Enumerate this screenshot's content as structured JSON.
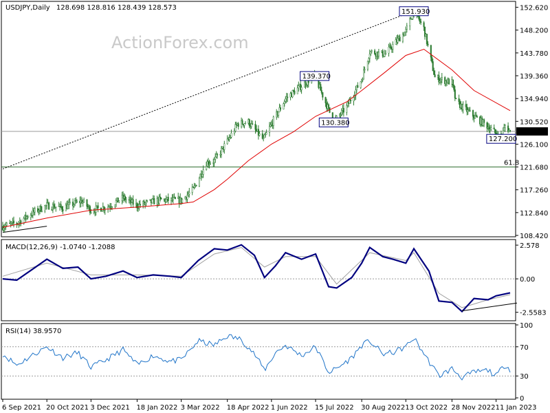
{
  "header": {
    "symbol": "USDJPY,Daily",
    "ohlc": "128.698 128.816 128.439 128.573",
    "watermark": "ActionForex.com"
  },
  "colors": {
    "candle": "#2e7d32",
    "ma": "#e00000",
    "macd": "#00007f",
    "signal": "#a0a0a0",
    "rsi": "#1e73c8",
    "grid": "#9a9a9a"
  },
  "chart_data": [
    {
      "type": "line",
      "panel": "price",
      "chart_kind": "candlestick",
      "ylim": [
        108.42,
        153.5
      ],
      "y_ticks": [
        "152.620",
        "148.200",
        "143.780",
        "139.360",
        "134.940",
        "130.520",
        "126.100",
        "121.680",
        "117.260",
        "112.840",
        "108.420"
      ],
      "y_tick_values": [
        152.62,
        148.2,
        143.78,
        139.36,
        134.94,
        130.52,
        126.1,
        121.68,
        117.26,
        112.84,
        108.42
      ],
      "x_ticks": [
        "6 Sep 2021",
        "20 Oct 2021",
        "3 Dec 2021",
        "18 Jan 2022",
        "3 Mar 2022",
        "18 Apr 2022",
        "1 Jun 2022",
        "15 Jul 2022",
        "30 Aug 2022",
        "13 Oct 2022",
        "28 Nov 2022",
        "11 Jan 2023"
      ],
      "current_price": "128.573",
      "fib_level": {
        "label": "61.8",
        "value": 121.68
      },
      "annotations": [
        {
          "text": "151.930",
          "x": "21 Oct 2022",
          "y": 151.93
        },
        {
          "text": "139.370",
          "x": "14 Jul 2022",
          "y": 139.37
        },
        {
          "text": "130.380",
          "x": "2 Aug 2022",
          "y": 130.38
        },
        {
          "text": "127.200",
          "x": "16 Jan 2023",
          "y": 127.2
        }
      ],
      "price_path": [
        [
          "6 Sep 2021",
          110.2
        ],
        [
          "20 Sep 2021",
          110.8
        ],
        [
          "1 Oct 2021",
          112.2
        ],
        [
          "12 Oct 2021",
          113.5
        ],
        [
          "20 Oct 2021",
          114.2
        ],
        [
          "5 Nov 2021",
          113.8
        ],
        [
          "24 Nov 2021",
          115.1
        ],
        [
          "3 Dec 2021",
          113.3
        ],
        [
          "20 Dec 2021",
          114.0
        ],
        [
          "4 Jan 2022",
          115.7
        ],
        [
          "18 Jan 2022",
          114.2
        ],
        [
          "10 Feb 2022",
          115.3
        ],
        [
          "3 Mar 2022",
          115.2
        ],
        [
          "15 Mar 2022",
          117.3
        ],
        [
          "28 Mar 2022",
          122.5
        ],
        [
          "5 Apr 2022",
          122.9
        ],
        [
          "18 Apr 2022",
          126.6
        ],
        [
          "28 Apr 2022",
          130.0
        ],
        [
          "9 May 2022",
          130.4
        ],
        [
          "24 May 2022",
          126.9
        ],
        [
          "1 Jun 2022",
          130.0
        ],
        [
          "15 Jun 2022",
          134.9
        ],
        [
          "23 Jun 2022",
          136.2
        ],
        [
          "14 Jul 2022",
          139.37
        ],
        [
          "2 Aug 2022",
          130.38
        ],
        [
          "15 Aug 2022",
          133.3
        ],
        [
          "30 Aug 2022",
          138.7
        ],
        [
          "7 Sep 2022",
          144.0
        ],
        [
          "22 Sep 2022",
          143.5
        ],
        [
          "13 Oct 2022",
          148.0
        ],
        [
          "21 Oct 2022",
          151.93
        ],
        [
          "31 Oct 2022",
          148.5
        ],
        [
          "11 Nov 2022",
          139.0
        ],
        [
          "28 Nov 2022",
          138.0
        ],
        [
          "2 Dec 2022",
          134.3
        ],
        [
          "20 Dec 2022",
          131.5
        ],
        [
          "3 Jan 2023",
          129.5
        ],
        [
          "16 Jan 2023",
          127.2
        ],
        [
          "20 Jan 2023",
          129.6
        ],
        [
          "25 Jan 2023",
          128.57
        ]
      ],
      "ma_path": [
        [
          "6 Sep 2021",
          110.0
        ],
        [
          "20 Oct 2021",
          111.8
        ],
        [
          "3 Dec 2021",
          113.3
        ],
        [
          "18 Jan 2022",
          113.9
        ],
        [
          "3 Mar 2022",
          114.6
        ],
        [
          "15 Mar 2022",
          114.9
        ],
        [
          "5 Apr 2022",
          117.3
        ],
        [
          "18 Apr 2022",
          119.3
        ],
        [
          "9 May 2022",
          122.9
        ],
        [
          "1 Jun 2022",
          126.1
        ],
        [
          "23 Jun 2022",
          128.5
        ],
        [
          "15 Jul 2022",
          131.5
        ],
        [
          "15 Aug 2022",
          134.3
        ],
        [
          "30 Aug 2022",
          136.5
        ],
        [
          "22 Sep 2022",
          140.0
        ],
        [
          "13 Oct 2022",
          143.3
        ],
        [
          "31 Oct 2022",
          144.5
        ],
        [
          "28 Nov 2022",
          140.5
        ],
        [
          "20 Dec 2022",
          136.5
        ],
        [
          "25 Jan 2023",
          132.6
        ]
      ],
      "trendlines": [
        {
          "from": [
            "6 Sep 2021",
            121.3
          ],
          "to": [
            "21 Oct 2022",
            151.93
          ],
          "style": "dotted"
        },
        {
          "from": [
            "6 Sep 2021",
            109.0
          ],
          "to": [
            "20 Oct 2021",
            110.2
          ],
          "style": "solid"
        }
      ]
    },
    {
      "type": "line",
      "panel": "macd",
      "label": "MACD(12,26,9) -1.0740 -1.2088",
      "ylim": [
        -3.1,
        2.9
      ],
      "y_ticks": [
        "2.578",
        "0.00",
        "-2.5583"
      ],
      "y_tick_values": [
        2.578,
        0,
        -2.5583
      ],
      "series": [
        {
          "name": "MACD",
          "values": [
            [
              "6 Sep 2021",
              0.0
            ],
            [
              "20 Sep 2021",
              -0.1
            ],
            [
              "5 Oct 2021",
              0.7
            ],
            [
              "20 Oct 2021",
              1.5
            ],
            [
              "5 Nov 2021",
              0.8
            ],
            [
              "20 Nov 2021",
              0.9
            ],
            [
              "3 Dec 2021",
              0.0
            ],
            [
              "18 Dec 2021",
              0.2
            ],
            [
              "4 Jan 2022",
              0.6
            ],
            [
              "18 Jan 2022",
              0.1
            ],
            [
              "3 Feb 2022",
              0.3
            ],
            [
              "20 Feb 2022",
              0.2
            ],
            [
              "3 Mar 2022",
              0.1
            ],
            [
              "20 Mar 2022",
              1.4
            ],
            [
              "5 Apr 2022",
              2.3
            ],
            [
              "18 Apr 2022",
              2.2
            ],
            [
              "2 May 2022",
              2.6
            ],
            [
              "15 May 2022",
              1.8
            ],
            [
              "25 May 2022",
              0.1
            ],
            [
              "5 Jun 2022",
              1.0
            ],
            [
              "15 Jun 2022",
              2.0
            ],
            [
              "1 Jul 2022",
              1.5
            ],
            [
              "15 Jul 2022",
              1.9
            ],
            [
              "28 Jul 2022",
              -0.6
            ],
            [
              "5 Aug 2022",
              -0.7
            ],
            [
              "20 Aug 2022",
              0.1
            ],
            [
              "30 Aug 2022",
              1.2
            ],
            [
              "7 Sep 2022",
              2.4
            ],
            [
              "20 Sep 2022",
              1.7
            ],
            [
              "30 Sep 2022",
              1.5
            ],
            [
              "13 Oct 2022",
              1.2
            ],
            [
              "21 Oct 2022",
              2.3
            ],
            [
              "5 Nov 2022",
              0.6
            ],
            [
              "15 Nov 2022",
              -1.7
            ],
            [
              "28 Nov 2022",
              -1.8
            ],
            [
              "8 Dec 2022",
              -2.5
            ],
            [
              "20 Dec 2022",
              -1.5
            ],
            [
              "3 Jan 2023",
              -1.6
            ],
            [
              "11 Jan 2023",
              -1.3
            ],
            [
              "25 Jan 2023",
              -1.07
            ]
          ]
        },
        {
          "name": "Signal",
          "values": [
            [
              "6 Sep 2021",
              0.2
            ],
            [
              "20 Oct 2021",
              1.2
            ],
            [
              "3 Dec 2021",
              0.3
            ],
            [
              "18 Jan 2022",
              0.3
            ],
            [
              "3 Mar 2022",
              0.2
            ],
            [
              "5 Apr 2022",
              1.9
            ],
            [
              "2 May 2022",
              2.4
            ],
            [
              "25 May 2022",
              0.9
            ],
            [
              "15 Jun 2022",
              1.7
            ],
            [
              "15 Jul 2022",
              1.7
            ],
            [
              "5 Aug 2022",
              -0.4
            ],
            [
              "7 Sep 2022",
              2.0
            ],
            [
              "13 Oct 2022",
              1.4
            ],
            [
              "21 Oct 2022",
              2.0
            ],
            [
              "15 Nov 2022",
              -1.1
            ],
            [
              "8 Dec 2022",
              -2.2
            ],
            [
              "3 Jan 2023",
              -1.6
            ],
            [
              "25 Jan 2023",
              -1.21
            ]
          ]
        }
      ],
      "trendline": {
        "from": [
          "8 Dec 2022",
          -2.45
        ],
        "to": [
          "25 Jan 2023",
          -1.85
        ]
      }
    },
    {
      "type": "line",
      "panel": "rsi",
      "label": "RSI(14) 38.9570",
      "ylim": [
        0,
        100
      ],
      "y_ticks": [
        "100",
        "70",
        "30",
        "0"
      ],
      "y_tick_values": [
        100,
        70,
        30,
        0
      ],
      "levels": [
        70,
        30
      ],
      "series": [
        {
          "name": "RSI",
          "values": [
            [
              "6 Sep 2021",
              60
            ],
            [
              "20 Sep 2021",
              45
            ],
            [
              "5 Oct 2021",
              58
            ],
            [
              "20 Oct 2021",
              70
            ],
            [
              "5 Nov 2021",
              55
            ],
            [
              "20 Nov 2021",
              62
            ],
            [
              "3 Dec 2021",
              42
            ],
            [
              "18 Dec 2021",
              52
            ],
            [
              "4 Jan 2022",
              66
            ],
            [
              "18 Jan 2022",
              45
            ],
            [
              "3 Feb 2022",
              58
            ],
            [
              "20 Feb 2022",
              50
            ],
            [
              "3 Mar 2022",
              52
            ],
            [
              "20 Mar 2022",
              78
            ],
            [
              "5 Apr 2022",
              72
            ],
            [
              "18 Apr 2022",
              85
            ],
            [
              "2 May 2022",
              80
            ],
            [
              "15 May 2022",
              60
            ],
            [
              "25 May 2022",
              38
            ],
            [
              "5 Jun 2022",
              62
            ],
            [
              "15 Jun 2022",
              72
            ],
            [
              "1 Jul 2022",
              58
            ],
            [
              "15 Jul 2022",
              70
            ],
            [
              "28 Jul 2022",
              35
            ],
            [
              "5 Aug 2022",
              40
            ],
            [
              "20 Aug 2022",
              55
            ],
            [
              "30 Aug 2022",
              72
            ],
            [
              "7 Sep 2022",
              78
            ],
            [
              "20 Sep 2022",
              60
            ],
            [
              "30 Sep 2022",
              62
            ],
            [
              "13 Oct 2022",
              70
            ],
            [
              "21 Oct 2022",
              82
            ],
            [
              "5 Nov 2022",
              50
            ],
            [
              "15 Nov 2022",
              30
            ],
            [
              "28 Nov 2022",
              40
            ],
            [
              "8 Dec 2022",
              28
            ],
            [
              "20 Dec 2022",
              35
            ],
            [
              "3 Jan 2023",
              38
            ],
            [
              "11 Jan 2023",
              30
            ],
            [
              "20 Jan 2023",
              46
            ],
            [
              "25 Jan 2023",
              38.96
            ]
          ]
        }
      ]
    }
  ]
}
